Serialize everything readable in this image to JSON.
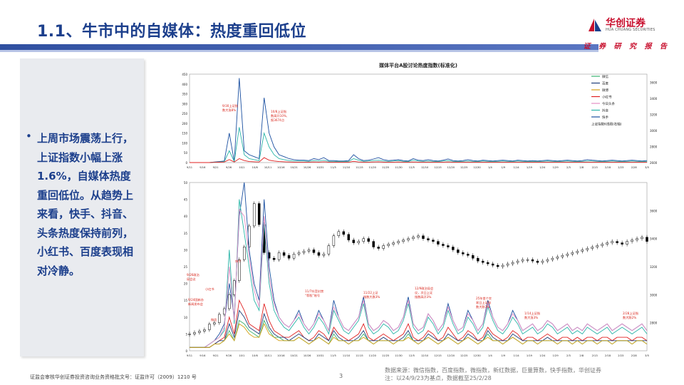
{
  "slide": {
    "title": "1.1、牛市中的自媒体：热度重回低位",
    "logo_name": "华创证券",
    "logo_sub": "HUA CHUANG SECURITIES",
    "report_tag": "证 券 研 究 报 告",
    "bullet_symbol": "•",
    "summary": "上周市场震荡上行，上证指数小幅上涨1.6%，自媒体热度重回低位。从趋势上来看，快手、抖音、头条热度保持前列，小红书、百度表现相对冷静。",
    "footer_left": "证监会审核华创证券投资咨询业务资格批文号：证监许可（2009）1210 号",
    "page_number": "3",
    "source_line1": "数据来源：微信指数，百度指数，微指数，新红数据，巨量算数，快手指数，华创证券",
    "source_line2": "注：以24/9/23为基点，数据截至25/2/28",
    "colors": {
      "title": "#1c3f8c",
      "brand_red": "#c8102e",
      "header_bar": "#2f4fa0"
    }
  },
  "chart_data": {
    "type": "line",
    "title": "媒体平台A股讨论热度指数(标准化)",
    "x_dates": [
      "9/11",
      "9/16",
      "9/21",
      "9/26",
      "10/1",
      "10/6",
      "10/11",
      "10/16",
      "10/21",
      "10/26",
      "10/31",
      "11/5",
      "11/10",
      "11/15",
      "11/20",
      "11/25",
      "11/30",
      "12/5",
      "12/10",
      "12/15",
      "12/20",
      "12/25",
      "12/30",
      "1/4",
      "1/9",
      "1/14",
      "1/19",
      "1/24",
      "1/29",
      "2/3",
      "2/8",
      "2/13",
      "2/18",
      "2/23",
      "2/28",
      "3/5"
    ],
    "legend": [
      "微信",
      "百度",
      "微博",
      "小红书",
      "今日头条",
      "抖音",
      "快手",
      "上证指数K线图(右轴)"
    ],
    "series_colors": [
      "#3cb371",
      "#1f3f7a",
      "#d4a017",
      "#e02020",
      "#e58fc4",
      "#2bb5a8",
      "#1a4fa0",
      "#000000"
    ],
    "top_panel": {
      "y_left_ticks": [
        "0",
        "50",
        "100",
        "150",
        "200",
        "250",
        "300",
        "350",
        "400",
        "450"
      ],
      "y_right_ticks": [
        "2600",
        "2800",
        "3000",
        "3200",
        "3400",
        "3600"
      ],
      "ylim": [
        0,
        450
      ],
      "y_right_lim": [
        2600,
        3700
      ],
      "annotations": [
        {
          "text": "9/30上证指数大涨8%",
          "lines": [
            "9/30上证指",
            "数大涨8%"
          ]
        },
        {
          "text": "10/8上证指数高开10%，报3674点",
          "lines": [
            "10/8上证指",
            "数高开10%,",
            "报3674点"
          ]
        }
      ],
      "series": {
        "快手": [
          0,
          0,
          0,
          0,
          0,
          3,
          5,
          8,
          150,
          5,
          430,
          60,
          40,
          30,
          20,
          330,
          150,
          80,
          40,
          30,
          20,
          15,
          12,
          12,
          10,
          20,
          15,
          25,
          10,
          10,
          8,
          8,
          10,
          40,
          20,
          10,
          12,
          18,
          25,
          15,
          10,
          12,
          15,
          10,
          8,
          20,
          12,
          10,
          15,
          10,
          8,
          12,
          18,
          10,
          8,
          10,
          15,
          10,
          8,
          12,
          10,
          8,
          10,
          12,
          10,
          8,
          12,
          10,
          8,
          10,
          8,
          10,
          12,
          10,
          8,
          10,
          12,
          10,
          8,
          10,
          15,
          12,
          10,
          8,
          10,
          12,
          10,
          8,
          10,
          12,
          10,
          8,
          10
        ],
        "抖音": [
          0,
          0,
          0,
          0,
          0,
          2,
          3,
          5,
          60,
          5,
          180,
          40,
          20,
          15,
          10,
          150,
          80,
          40,
          20,
          15,
          10,
          8,
          8,
          8,
          6,
          10,
          8,
          12,
          6,
          6,
          5,
          5,
          6,
          20,
          12,
          6,
          8,
          10,
          12,
          8,
          6,
          8,
          10,
          6,
          5,
          12,
          8,
          6,
          8,
          6,
          5,
          8,
          10,
          6,
          5,
          6,
          8,
          6,
          5,
          8,
          6,
          5,
          6,
          8,
          6,
          5,
          8,
          6,
          5,
          6,
          5,
          6,
          8,
          6,
          5,
          6,
          8,
          6,
          5,
          6,
          8,
          8,
          6,
          5,
          6,
          8,
          6,
          5,
          6,
          8,
          6,
          5,
          6
        ],
        "小红书": [
          0,
          0,
          0,
          0,
          0,
          1,
          2,
          3,
          15,
          3,
          20,
          10,
          5,
          4,
          3,
          25,
          12,
          8,
          5,
          4,
          3,
          2,
          2,
          2,
          2,
          3,
          2,
          4,
          2,
          2,
          2,
          2,
          2,
          6,
          3,
          2,
          2,
          3,
          4,
          2,
          2,
          2,
          3,
          2,
          2,
          3,
          2,
          2,
          2,
          2,
          2,
          2,
          3,
          2,
          2,
          2,
          2,
          2,
          2,
          2,
          2,
          2,
          2,
          2,
          2,
          2,
          2,
          2,
          2,
          2,
          2,
          2,
          2,
          2,
          2,
          2,
          2,
          2,
          2,
          2,
          2,
          2,
          2,
          2,
          2,
          2,
          2,
          2,
          2,
          2,
          2,
          2,
          2
        ]
      }
    },
    "bottom_panel": {
      "y_left_ticks": [
        "0",
        "5",
        "10",
        "15",
        "20",
        "25",
        "30",
        "35",
        "40",
        "45",
        "50"
      ],
      "y_right_ticks": [
        "2800",
        "3000",
        "3200",
        "3400",
        "3600"
      ],
      "ylim": [
        0,
        50
      ],
      "y_right_lim": [
        2600,
        3800
      ],
      "annotations": [
        {
          "text": "快手",
          "lines": [
            "快手"
          ]
        },
        {
          "text": "9/26政治局会议",
          "lines": [
            "9/26政治",
            "局会议"
          ]
        },
        {
          "text": "小红书",
          "lines": [
            "小红书"
          ]
        },
        {
          "text": "9/24国新办新闻发布会",
          "lines": [
            "9/24国新办",
            "新闻发布会"
          ]
        },
        {
          "text": "微信",
          "lines": [
            "微信"
          ]
        },
        {
          "text": "11/7抖音封禁“荐股”账号",
          "lines": [
            "11/7抖音封禁",
            "“荐股”账号"
          ]
        },
        {
          "text": "11/22上证指数大跌3%",
          "lines": [
            "11/22上证",
            "指数大跌3%"
          ]
        },
        {
          "text": "12/9政治局会议，次日上证指数高开3%",
          "lines": [
            "12/9政治局会",
            "议，次日上证",
            "指数高开3%"
          ]
        },
        {
          "text": "25年首个交易日上证指数大跌3%",
          "lines": [
            "25年首个交",
            "易日上证指",
            "数大跌3%"
          ]
        },
        {
          "text": "1/14上证指数大涨3%",
          "lines": [
            "1/14上证指",
            "数大涨3%"
          ]
        },
        {
          "text": "2/28上证指数大跌2%",
          "lines": [
            "2/28上证指",
            "数大跌2%"
          ]
        }
      ],
      "series": {
        "快手": [
          1,
          1,
          1,
          1,
          2,
          3,
          5,
          8,
          20,
          10,
          40,
          50,
          30,
          20,
          15,
          45,
          25,
          15,
          10,
          8,
          7,
          9,
          12,
          8,
          6,
          8,
          12,
          9,
          6,
          15,
          10,
          7,
          6,
          8,
          10,
          16,
          8,
          6,
          7,
          9,
          8,
          6,
          7,
          10,
          16,
          8,
          6,
          7,
          11,
          9,
          6,
          8,
          14,
          9,
          6,
          7,
          12,
          9,
          6,
          8,
          15,
          10,
          7,
          6,
          8,
          12,
          9,
          6,
          7,
          8,
          6,
          7,
          9,
          8,
          6,
          7,
          8,
          6,
          7,
          6,
          8,
          7,
          6,
          7,
          8,
          6,
          7,
          8,
          7,
          6,
          7,
          8,
          6
        ],
        "抖音": [
          1,
          1,
          1,
          1,
          2,
          3,
          4,
          6,
          30,
          8,
          45,
          35,
          25,
          15,
          12,
          38,
          20,
          12,
          9,
          7,
          6,
          8,
          10,
          7,
          5,
          7,
          10,
          8,
          5,
          12,
          9,
          6,
          5,
          7,
          9,
          14,
          7,
          5,
          6,
          8,
          7,
          5,
          6,
          9,
          14,
          7,
          5,
          6,
          10,
          8,
          5,
          7,
          12,
          8,
          5,
          6,
          10,
          8,
          5,
          7,
          13,
          9,
          6,
          5,
          7,
          10,
          8,
          5,
          6,
          7,
          5,
          6,
          8,
          7,
          5,
          6,
          7,
          5,
          6,
          5,
          7,
          6,
          5,
          6,
          7,
          5,
          6,
          7,
          6,
          5,
          6,
          7,
          5
        ],
        "今日头条": [
          1,
          1,
          1,
          1,
          2,
          3,
          4,
          7,
          25,
          9,
          42,
          40,
          28,
          18,
          13,
          40,
          22,
          14,
          10,
          8,
          7,
          9,
          11,
          8,
          6,
          8,
          11,
          9,
          6,
          13,
          10,
          7,
          6,
          8,
          10,
          15,
          8,
          6,
          7,
          9,
          8,
          6,
          7,
          10,
          15,
          8,
          6,
          7,
          11,
          9,
          6,
          8,
          13,
          9,
          6,
          7,
          11,
          9,
          6,
          8,
          14,
          10,
          7,
          6,
          8,
          11,
          9,
          6,
          7,
          8,
          6,
          7,
          9,
          8,
          6,
          7,
          8,
          6,
          7,
          6,
          8,
          7,
          6,
          7,
          8,
          6,
          7,
          8,
          7,
          6,
          7,
          8,
          6
        ],
        "小红书": [
          1,
          1,
          1,
          1,
          1,
          2,
          3,
          4,
          10,
          5,
          15,
          12,
          8,
          7,
          6,
          14,
          9,
          6,
          5,
          4,
          4,
          5,
          6,
          4,
          3,
          4,
          6,
          5,
          3,
          7,
          5,
          4,
          3,
          4,
          5,
          8,
          4,
          3,
          4,
          5,
          4,
          3,
          4,
          5,
          8,
          4,
          3,
          4,
          6,
          5,
          3,
          4,
          7,
          5,
          3,
          4,
          6,
          5,
          3,
          4,
          7,
          5,
          4,
          3,
          4,
          6,
          5,
          3,
          4,
          4,
          3,
          4,
          5,
          4,
          3,
          4,
          4,
          3,
          4,
          3,
          4,
          4,
          3,
          4,
          4,
          3,
          4,
          4,
          4,
          3,
          4,
          4,
          3
        ],
        "百度": [
          1,
          1,
          1,
          1,
          1,
          2,
          3,
          3,
          8,
          4,
          12,
          10,
          7,
          6,
          5,
          11,
          7,
          5,
          4,
          4,
          3,
          4,
          5,
          4,
          3,
          3,
          5,
          4,
          3,
          6,
          4,
          3,
          3,
          3,
          4,
          6,
          3,
          3,
          3,
          4,
          3,
          3,
          3,
          4,
          6,
          3,
          3,
          3,
          5,
          4,
          3,
          3,
          5,
          4,
          3,
          3,
          5,
          4,
          3,
          3,
          6,
          4,
          3,
          3,
          3,
          5,
          4,
          3,
          3,
          3,
          3,
          3,
          4,
          3,
          3,
          3,
          3,
          3,
          3,
          3,
          3,
          3,
          3,
          3,
          3,
          3,
          3,
          3,
          3,
          3,
          3,
          3,
          3
        ],
        "微信": [
          1,
          1,
          1,
          1,
          1,
          2,
          2,
          3,
          6,
          3,
          9,
          8,
          6,
          5,
          4,
          9,
          6,
          4,
          4,
          3,
          3,
          3,
          4,
          3,
          2,
          3,
          4,
          3,
          2,
          5,
          3,
          3,
          2,
          3,
          3,
          5,
          3,
          2,
          3,
          3,
          3,
          2,
          3,
          3,
          5,
          3,
          2,
          3,
          4,
          3,
          2,
          3,
          4,
          3,
          2,
          3,
          4,
          3,
          2,
          3,
          5,
          3,
          3,
          2,
          3,
          4,
          3,
          2,
          3,
          3,
          2,
          3,
          3,
          3,
          2,
          3,
          3,
          2,
          3,
          2,
          3,
          3,
          2,
          3,
          3,
          2,
          3,
          3,
          3,
          2,
          3,
          3,
          2
        ],
        "微博": [
          1,
          1,
          1,
          1,
          1,
          2,
          2,
          3,
          5,
          3,
          8,
          7,
          5,
          4,
          4,
          8,
          5,
          4,
          3,
          3,
          3,
          3,
          4,
          3,
          2,
          3,
          4,
          3,
          2,
          4,
          3,
          3,
          2,
          3,
          3,
          4,
          3,
          2,
          3,
          3,
          3,
          2,
          3,
          3,
          4,
          3,
          2,
          3,
          4,
          3,
          2,
          3,
          4,
          3,
          2,
          3,
          4,
          3,
          2,
          3,
          4,
          3,
          3,
          2,
          3,
          4,
          3,
          2,
          3,
          3,
          2,
          3,
          3,
          3,
          2,
          3,
          3,
          2,
          3,
          2,
          3,
          3,
          2,
          3,
          3,
          2,
          3,
          3,
          3,
          2,
          3,
          3,
          2
        ]
      },
      "kline_close": [
        2720,
        2730,
        2740,
        2750,
        2790,
        2800,
        2860,
        2900,
        3000,
        3100,
        3250,
        3340,
        3490,
        3650,
        3500,
        3300,
        3260,
        3250,
        3300,
        3280,
        3260,
        3290,
        3300,
        3310,
        3320,
        3300,
        3280,
        3290,
        3350,
        3420,
        3450,
        3430,
        3390,
        3370,
        3380,
        3400,
        3380,
        3340,
        3330,
        3350,
        3360,
        3370,
        3380,
        3390,
        3400,
        3410,
        3420,
        3400,
        3390,
        3380,
        3360,
        3350,
        3340,
        3320,
        3300,
        3290,
        3280,
        3260,
        3240,
        3230,
        3220,
        3210,
        3200,
        3210,
        3220,
        3230,
        3240,
        3250,
        3250,
        3240,
        3230,
        3240,
        3250,
        3260,
        3270,
        3280,
        3290,
        3300,
        3310,
        3320,
        3330,
        3340,
        3350,
        3360,
        3370,
        3380,
        3370,
        3360,
        3380,
        3390,
        3400,
        3410,
        3380
      ]
    }
  }
}
